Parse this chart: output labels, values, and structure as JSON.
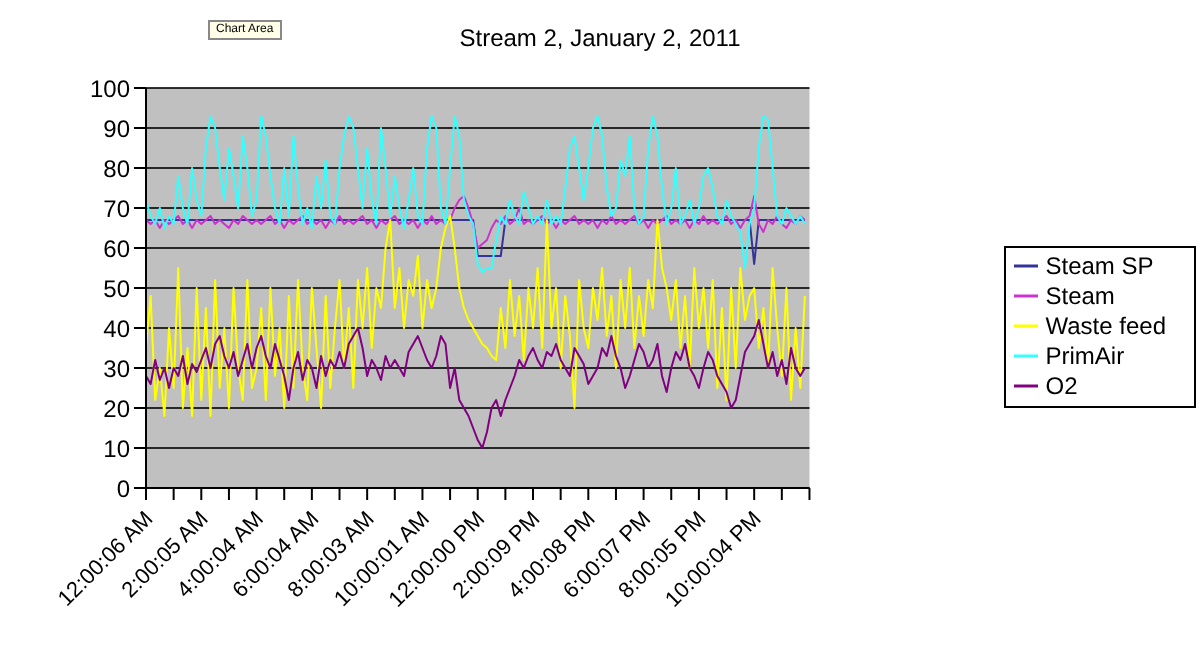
{
  "chart_data": {
    "type": "line",
    "title": "Stream 2, January 2, 2011",
    "annotations": [
      "Chart Area"
    ],
    "categories": [
      "12:00:06 AM",
      null,
      null,
      null,
      null,
      null,
      null,
      null,
      null,
      null,
      null,
      null,
      "2:00:05 AM",
      null,
      null,
      null,
      null,
      null,
      null,
      null,
      null,
      null,
      null,
      null,
      "4:00:04 AM",
      null,
      null,
      null,
      null,
      null,
      null,
      null,
      null,
      null,
      null,
      null,
      "6:00:04 AM",
      null,
      null,
      null,
      null,
      null,
      null,
      null,
      null,
      null,
      null,
      null,
      "8:00:03 AM",
      null,
      null,
      null,
      null,
      null,
      null,
      null,
      null,
      null,
      null,
      null,
      "10:00:01 AM",
      null,
      null,
      null,
      null,
      null,
      null,
      null,
      null,
      null,
      null,
      null,
      "12:00:00 PM",
      null,
      null,
      null,
      null,
      null,
      null,
      null,
      null,
      null,
      null,
      null,
      "2:00:09 PM",
      null,
      null,
      null,
      null,
      null,
      null,
      null,
      null,
      null,
      null,
      null,
      "4:00:08 PM",
      null,
      null,
      null,
      null,
      null,
      null,
      null,
      null,
      null,
      null,
      null,
      "6:00:07 PM",
      null,
      null,
      null,
      null,
      null,
      null,
      null,
      null,
      null,
      null,
      null,
      "8:00:05 PM",
      null,
      null,
      null,
      null,
      null,
      null,
      null,
      null,
      null,
      null,
      null,
      "10:00:04 PM",
      null,
      null,
      null,
      null,
      null,
      null,
      null,
      null,
      null,
      null,
      null
    ],
    "series": [
      {
        "name": "Steam SP",
        "color": "#333399",
        "values": [
          67,
          67,
          67,
          67,
          67,
          67,
          67,
          67,
          67,
          67,
          67,
          67,
          67,
          67,
          67,
          67,
          67,
          67,
          67,
          67,
          67,
          67,
          67,
          67,
          67,
          67,
          67,
          67,
          67,
          67,
          67,
          67,
          67,
          67,
          67,
          67,
          67,
          67,
          67,
          67,
          67,
          67,
          67,
          67,
          67,
          67,
          67,
          67,
          67,
          67,
          67,
          67,
          67,
          67,
          67,
          67,
          67,
          67,
          67,
          67,
          67,
          67,
          67,
          67,
          67,
          67,
          67,
          67,
          67,
          67,
          67,
          67,
          58,
          58,
          58,
          58,
          58,
          58,
          67,
          67,
          67,
          67,
          67,
          67,
          67,
          67,
          67,
          67,
          67,
          67,
          67,
          67,
          67,
          67,
          67,
          67,
          67,
          67,
          67,
          67,
          67,
          67,
          67,
          67,
          67,
          67,
          67,
          67,
          67,
          67,
          67,
          67,
          67,
          67,
          67,
          67,
          67,
          67,
          67,
          67,
          67,
          67,
          67,
          67,
          67,
          67,
          67,
          67,
          67,
          67,
          67,
          67,
          56,
          67,
          67,
          67,
          67,
          67,
          67,
          67,
          67,
          67,
          67,
          67
        ]
      },
      {
        "name": "Steam",
        "color": "#cc33cc",
        "values": [
          67,
          66,
          67,
          65,
          67,
          66,
          67,
          68,
          66,
          67,
          65,
          67,
          66,
          67,
          68,
          66,
          67,
          66,
          65,
          67,
          66,
          68,
          67,
          66,
          67,
          66,
          67,
          68,
          66,
          67,
          65,
          67,
          66,
          67,
          68,
          66,
          67,
          66,
          67,
          65,
          67,
          66,
          68,
          66,
          67,
          66,
          67,
          68,
          66,
          67,
          65,
          67,
          66,
          67,
          68,
          66,
          67,
          66,
          67,
          65,
          67,
          66,
          68,
          66,
          67,
          66,
          67,
          70,
          72,
          73,
          70,
          66,
          60,
          61,
          62,
          65,
          67,
          66,
          68,
          66,
          67,
          70,
          66,
          67,
          66,
          67,
          68,
          66,
          67,
          65,
          67,
          66,
          67,
          68,
          66,
          67,
          66,
          67,
          65,
          67,
          66,
          68,
          66,
          67,
          66,
          67,
          68,
          66,
          67,
          65,
          67,
          66,
          67,
          68,
          66,
          67,
          66,
          67,
          65,
          67,
          66,
          68,
          66,
          67,
          66,
          67,
          68,
          66,
          67,
          65,
          67,
          68,
          73,
          66,
          64,
          67,
          66,
          68,
          66,
          65,
          67,
          66,
          68,
          67
        ]
      },
      {
        "name": "Waste feed",
        "color": "#ffff00",
        "values": [
          35,
          48,
          22,
          30,
          18,
          40,
          25,
          55,
          20,
          35,
          18,
          50,
          22,
          45,
          18,
          52,
          25,
          40,
          20,
          50,
          30,
          22,
          52,
          25,
          30,
          45,
          22,
          50,
          28,
          40,
          20,
          48,
          25,
          52,
          30,
          22,
          50,
          35,
          20,
          48,
          25,
          40,
          52,
          30,
          45,
          25,
          52,
          40,
          55,
          35,
          50,
          45,
          60,
          67,
          45,
          55,
          40,
          52,
          48,
          58,
          40,
          52,
          45,
          50,
          60,
          65,
          68,
          60,
          50,
          45,
          42,
          40,
          38,
          36,
          35,
          33,
          32,
          45,
          35,
          52,
          38,
          48,
          32,
          50,
          40,
          55,
          35,
          67,
          40,
          50,
          30,
          48,
          38,
          20,
          52,
          40,
          35,
          50,
          42,
          55,
          38,
          48,
          30,
          52,
          40,
          55,
          35,
          48,
          38,
          52,
          45,
          67,
          55,
          50,
          42,
          52,
          35,
          48,
          30,
          55,
          40,
          50,
          35,
          52,
          25,
          45,
          22,
          50,
          30,
          55,
          42,
          48,
          50,
          35,
          45,
          30,
          55,
          40,
          28,
          50,
          22,
          40,
          25,
          48
        ]
      },
      {
        "name": "PrimAir",
        "color": "#33ffff",
        "values": [
          72,
          68,
          66,
          70,
          65,
          68,
          66,
          78,
          70,
          66,
          80,
          72,
          68,
          85,
          93,
          90,
          80,
          72,
          85,
          78,
          70,
          88,
          80,
          68,
          72,
          93,
          88,
          78,
          70,
          66,
          80,
          68,
          88,
          75,
          66,
          70,
          65,
          78,
          70,
          82,
          68,
          66,
          80,
          88,
          93,
          90,
          80,
          70,
          85,
          72,
          66,
          90,
          80,
          68,
          78,
          70,
          65,
          72,
          80,
          68,
          66,
          85,
          93,
          90,
          70,
          66,
          80,
          93,
          88,
          72,
          68,
          66,
          56,
          54,
          55,
          55,
          62,
          68,
          66,
          72,
          68,
          66,
          74,
          70,
          66,
          68,
          66,
          72,
          66,
          68,
          66,
          75,
          85,
          88,
          80,
          72,
          80,
          90,
          93,
          88,
          75,
          68,
          70,
          82,
          78,
          88,
          70,
          66,
          68,
          85,
          93,
          88,
          75,
          66,
          70,
          80,
          66,
          68,
          72,
          66,
          70,
          78,
          80,
          75,
          68,
          66,
          72,
          68,
          66,
          64,
          55,
          66,
          70,
          85,
          93,
          92,
          80,
          68,
          66,
          70,
          68,
          66,
          68,
          66
        ]
      },
      {
        "name": "O2",
        "color": "#800080",
        "values": [
          28,
          26,
          32,
          27,
          30,
          25,
          30,
          28,
          33,
          26,
          31,
          29,
          32,
          35,
          30,
          36,
          38,
          33,
          30,
          34,
          28,
          32,
          36,
          30,
          35,
          38,
          33,
          30,
          36,
          32,
          28,
          22,
          30,
          34,
          27,
          32,
          30,
          25,
          33,
          28,
          32,
          30,
          34,
          30,
          36,
          38,
          40,
          35,
          28,
          32,
          30,
          27,
          33,
          30,
          32,
          30,
          28,
          34,
          36,
          38,
          35,
          32,
          30,
          33,
          38,
          36,
          25,
          30,
          22,
          20,
          18,
          15,
          12,
          10,
          14,
          20,
          22,
          18,
          22,
          25,
          28,
          32,
          30,
          33,
          35,
          32,
          30,
          34,
          33,
          36,
          32,
          30,
          28,
          35,
          33,
          31,
          26,
          28,
          30,
          35,
          33,
          38,
          33,
          30,
          25,
          28,
          32,
          36,
          34,
          30,
          32,
          36,
          28,
          24,
          30,
          34,
          32,
          36,
          30,
          28,
          25,
          30,
          34,
          32,
          28,
          26,
          24,
          20,
          22,
          28,
          34,
          36,
          38,
          42,
          36,
          30,
          34,
          28,
          32,
          26,
          35,
          30,
          28,
          30
        ]
      }
    ],
    "ylim": [
      0,
      100
    ],
    "yticks": [
      0,
      10,
      20,
      30,
      40,
      50,
      60,
      70,
      80,
      90,
      100
    ],
    "grid": "y",
    "legend": "right",
    "marker": "none",
    "line_style": "solid"
  }
}
